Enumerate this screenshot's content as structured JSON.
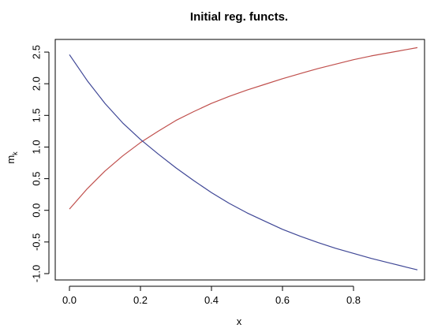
{
  "chart_data": {
    "type": "line",
    "title": "Initial reg. functs.",
    "xlabel": "x",
    "ylabel": "m",
    "ylabel_sub": "k",
    "xlim": [
      -0.04,
      1.0
    ],
    "ylim": [
      -1.1,
      2.7
    ],
    "x_ticks": [
      0.0,
      0.2,
      0.4,
      0.6,
      0.8
    ],
    "x_tick_labels": [
      "0.0",
      "0.2",
      "0.4",
      "0.6",
      "0.8"
    ],
    "y_ticks": [
      -1.0,
      -0.5,
      0.0,
      0.5,
      1.0,
      1.5,
      2.0,
      2.5
    ],
    "y_tick_labels": [
      "-1.0",
      "-0.5",
      "0.0",
      "0.5",
      "1.0",
      "1.5",
      "2.0",
      "2.5"
    ],
    "grid": false,
    "legend": "none",
    "series": [
      {
        "color": "#c0504d",
        "x": [
          0.0,
          0.05,
          0.1,
          0.15,
          0.2,
          0.25,
          0.3,
          0.35,
          0.4,
          0.45,
          0.5,
          0.55,
          0.6,
          0.65,
          0.7,
          0.75,
          0.8,
          0.85,
          0.9,
          0.95,
          0.98
        ],
        "y": [
          0.02,
          0.34,
          0.62,
          0.86,
          1.07,
          1.25,
          1.42,
          1.56,
          1.69,
          1.8,
          1.9,
          1.99,
          2.08,
          2.16,
          2.24,
          2.31,
          2.38,
          2.44,
          2.49,
          2.54,
          2.57
        ]
      },
      {
        "color": "#3f4796",
        "x": [
          0.0,
          0.05,
          0.1,
          0.15,
          0.2,
          0.25,
          0.3,
          0.35,
          0.4,
          0.45,
          0.5,
          0.55,
          0.6,
          0.65,
          0.7,
          0.75,
          0.8,
          0.85,
          0.9,
          0.95,
          0.98
        ],
        "y": [
          2.46,
          2.05,
          1.69,
          1.38,
          1.12,
          0.89,
          0.67,
          0.47,
          0.28,
          0.11,
          -0.04,
          -0.17,
          -0.3,
          -0.41,
          -0.51,
          -0.6,
          -0.68,
          -0.76,
          -0.83,
          -0.9,
          -0.94
        ]
      }
    ]
  }
}
